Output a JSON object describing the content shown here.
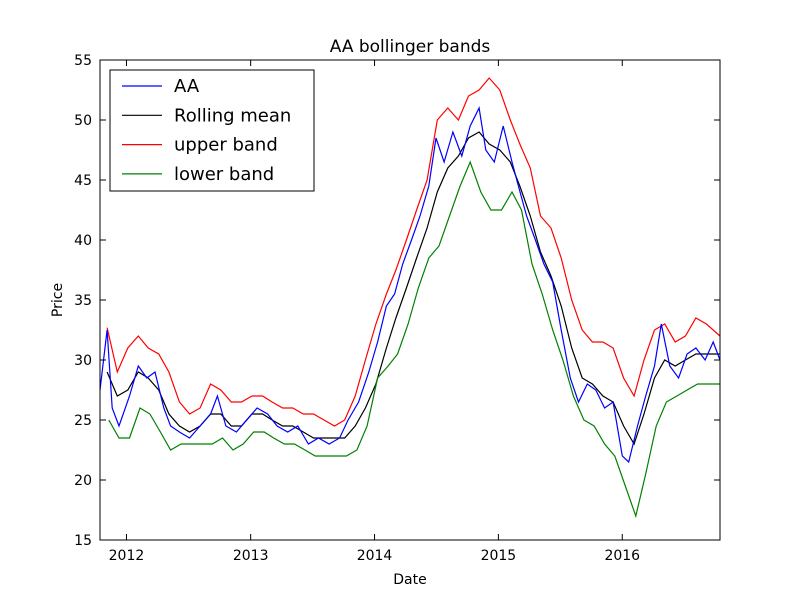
{
  "chart_data": {
    "type": "line",
    "title": "AA bollinger bands",
    "xlabel": "Date",
    "ylabel": "Price",
    "xlim": [
      "2011-10-15",
      "2016-10-15"
    ],
    "ylim": [
      15,
      55
    ],
    "x_ticks": [
      "2012",
      "2013",
      "2014",
      "2015",
      "2016"
    ],
    "y_ticks": [
      15,
      20,
      25,
      30,
      35,
      40,
      45,
      50,
      55
    ],
    "grid": false,
    "legend_position": "top-left",
    "series": [
      {
        "name": "AA",
        "color": "#0000ff",
        "points": [
          [
            "2011-10-15",
            27.5
          ],
          [
            "2011-11-05",
            32.5
          ],
          [
            "2011-11-20",
            26.0
          ],
          [
            "2011-12-10",
            24.5
          ],
          [
            "2012-01-10",
            27.0
          ],
          [
            "2012-02-05",
            29.5
          ],
          [
            "2012-03-01",
            28.5
          ],
          [
            "2012-03-25",
            29.0
          ],
          [
            "2012-04-20",
            26.0
          ],
          [
            "2012-05-10",
            24.5
          ],
          [
            "2012-06-05",
            24.0
          ],
          [
            "2012-07-05",
            23.5
          ],
          [
            "2012-08-05",
            24.5
          ],
          [
            "2012-09-05",
            25.5
          ],
          [
            "2012-09-25",
            27.0
          ],
          [
            "2012-10-20",
            24.5
          ],
          [
            "2012-11-20",
            24.0
          ],
          [
            "2012-12-20",
            25.0
          ],
          [
            "2013-01-20",
            26.0
          ],
          [
            "2013-02-20",
            25.5
          ],
          [
            "2013-03-20",
            24.5
          ],
          [
            "2013-04-20",
            24.0
          ],
          [
            "2013-05-20",
            24.5
          ],
          [
            "2013-06-20",
            23.0
          ],
          [
            "2013-07-20",
            23.5
          ],
          [
            "2013-08-20",
            23.0
          ],
          [
            "2013-09-20",
            23.5
          ],
          [
            "2013-10-15",
            25.0
          ],
          [
            "2013-11-15",
            26.5
          ],
          [
            "2013-12-15",
            29.0
          ],
          [
            "2014-01-10",
            31.5
          ],
          [
            "2014-02-05",
            34.5
          ],
          [
            "2014-03-01",
            35.5
          ],
          [
            "2014-03-25",
            38.0
          ],
          [
            "2014-04-20",
            40.0
          ],
          [
            "2014-05-15",
            42.0
          ],
          [
            "2014-06-10",
            44.5
          ],
          [
            "2014-07-01",
            48.5
          ],
          [
            "2014-07-25",
            46.5
          ],
          [
            "2014-08-20",
            49.0
          ],
          [
            "2014-09-15",
            47.0
          ],
          [
            "2014-10-10",
            49.5
          ],
          [
            "2014-11-05",
            51.0
          ],
          [
            "2014-11-25",
            47.5
          ],
          [
            "2014-12-20",
            46.5
          ],
          [
            "2015-01-15",
            49.5
          ],
          [
            "2015-02-10",
            46.5
          ],
          [
            "2015-03-01",
            44.5
          ],
          [
            "2015-03-25",
            42.0
          ],
          [
            "2015-04-20",
            40.0
          ],
          [
            "2015-05-15",
            38.0
          ],
          [
            "2015-06-10",
            36.5
          ],
          [
            "2015-07-05",
            32.5
          ],
          [
            "2015-08-01",
            28.5
          ],
          [
            "2015-08-25",
            26.5
          ],
          [
            "2015-09-20",
            28.0
          ],
          [
            "2015-10-15",
            27.5
          ],
          [
            "2015-11-10",
            26.0
          ],
          [
            "2015-12-05",
            26.5
          ],
          [
            "2016-01-01",
            22.0
          ],
          [
            "2016-01-20",
            21.5
          ],
          [
            "2016-02-15",
            24.5
          ],
          [
            "2016-03-10",
            27.0
          ],
          [
            "2016-04-05",
            29.5
          ],
          [
            "2016-04-25",
            33.0
          ],
          [
            "2016-05-20",
            29.5
          ],
          [
            "2016-06-15",
            28.5
          ],
          [
            "2016-07-10",
            30.5
          ],
          [
            "2016-08-05",
            31.0
          ],
          [
            "2016-09-01",
            30.0
          ],
          [
            "2016-09-25",
            31.5
          ],
          [
            "2016-10-15",
            30.0
          ]
        ]
      },
      {
        "name": "Rolling mean",
        "color": "#000000",
        "points": [
          [
            "2011-11-05",
            29.0
          ],
          [
            "2011-12-05",
            27.0
          ],
          [
            "2012-01-05",
            27.5
          ],
          [
            "2012-02-05",
            29.0
          ],
          [
            "2012-03-05",
            28.5
          ],
          [
            "2012-04-05",
            27.5
          ],
          [
            "2012-05-05",
            25.5
          ],
          [
            "2012-06-05",
            24.5
          ],
          [
            "2012-07-05",
            24.0
          ],
          [
            "2012-08-05",
            24.5
          ],
          [
            "2012-09-05",
            25.5
          ],
          [
            "2012-10-05",
            25.5
          ],
          [
            "2012-11-05",
            24.5
          ],
          [
            "2012-12-05",
            24.5
          ],
          [
            "2013-01-05",
            25.5
          ],
          [
            "2013-02-05",
            25.5
          ],
          [
            "2013-03-05",
            25.0
          ],
          [
            "2013-04-05",
            24.5
          ],
          [
            "2013-05-05",
            24.5
          ],
          [
            "2013-06-05",
            24.0
          ],
          [
            "2013-07-05",
            23.5
          ],
          [
            "2013-08-05",
            23.5
          ],
          [
            "2013-09-05",
            23.5
          ],
          [
            "2013-10-05",
            23.5
          ],
          [
            "2013-11-05",
            24.5
          ],
          [
            "2013-12-05",
            26.0
          ],
          [
            "2014-01-05",
            28.0
          ],
          [
            "2014-02-05",
            31.0
          ],
          [
            "2014-03-05",
            33.5
          ],
          [
            "2014-04-05",
            36.0
          ],
          [
            "2014-05-05",
            38.5
          ],
          [
            "2014-06-05",
            41.0
          ],
          [
            "2014-07-05",
            44.0
          ],
          [
            "2014-08-05",
            46.0
          ],
          [
            "2014-09-05",
            47.0
          ],
          [
            "2014-10-05",
            48.5
          ],
          [
            "2014-11-05",
            49.0
          ],
          [
            "2014-12-05",
            48.0
          ],
          [
            "2015-01-05",
            47.5
          ],
          [
            "2015-02-05",
            46.5
          ],
          [
            "2015-03-05",
            44.5
          ],
          [
            "2015-04-05",
            42.0
          ],
          [
            "2015-05-05",
            39.0
          ],
          [
            "2015-06-05",
            37.0
          ],
          [
            "2015-07-05",
            34.5
          ],
          [
            "2015-08-05",
            31.0
          ],
          [
            "2015-09-05",
            28.5
          ],
          [
            "2015-10-05",
            28.0
          ],
          [
            "2015-11-05",
            27.0
          ],
          [
            "2015-12-05",
            26.5
          ],
          [
            "2016-01-05",
            24.5
          ],
          [
            "2016-02-05",
            23.0
          ],
          [
            "2016-03-05",
            25.5
          ],
          [
            "2016-04-05",
            28.5
          ],
          [
            "2016-05-05",
            30.0
          ],
          [
            "2016-06-05",
            29.5
          ],
          [
            "2016-07-05",
            30.0
          ],
          [
            "2016-08-05",
            30.5
          ],
          [
            "2016-09-05",
            30.5
          ],
          [
            "2016-10-15",
            30.5
          ]
        ]
      },
      {
        "name": "upper band",
        "color": "#ff0000",
        "points": [
          [
            "2011-11-05",
            32.7
          ],
          [
            "2011-12-05",
            29.0
          ],
          [
            "2012-01-05",
            31.0
          ],
          [
            "2012-02-05",
            32.0
          ],
          [
            "2012-03-05",
            31.0
          ],
          [
            "2012-04-05",
            30.5
          ],
          [
            "2012-05-05",
            29.0
          ],
          [
            "2012-06-05",
            26.5
          ],
          [
            "2012-07-05",
            25.5
          ],
          [
            "2012-08-05",
            26.0
          ],
          [
            "2012-09-05",
            28.0
          ],
          [
            "2012-10-05",
            27.5
          ],
          [
            "2012-11-05",
            26.5
          ],
          [
            "2012-12-05",
            26.5
          ],
          [
            "2013-01-05",
            27.0
          ],
          [
            "2013-02-05",
            27.0
          ],
          [
            "2013-03-05",
            26.5
          ],
          [
            "2013-04-05",
            26.0
          ],
          [
            "2013-05-05",
            26.0
          ],
          [
            "2013-06-05",
            25.5
          ],
          [
            "2013-07-05",
            25.5
          ],
          [
            "2013-08-05",
            25.0
          ],
          [
            "2013-09-05",
            24.5
          ],
          [
            "2013-10-05",
            25.0
          ],
          [
            "2013-11-05",
            27.0
          ],
          [
            "2013-12-05",
            30.0
          ],
          [
            "2014-01-05",
            33.0
          ],
          [
            "2014-02-05",
            35.5
          ],
          [
            "2014-03-05",
            37.5
          ],
          [
            "2014-04-05",
            40.0
          ],
          [
            "2014-05-05",
            42.5
          ],
          [
            "2014-06-05",
            45.0
          ],
          [
            "2014-07-05",
            50.0
          ],
          [
            "2014-08-05",
            51.0
          ],
          [
            "2014-09-05",
            50.0
          ],
          [
            "2014-10-05",
            52.0
          ],
          [
            "2014-11-05",
            52.5
          ],
          [
            "2014-12-05",
            53.5
          ],
          [
            "2015-01-05",
            52.5
          ],
          [
            "2015-02-05",
            50.0
          ],
          [
            "2015-03-05",
            48.0
          ],
          [
            "2015-04-05",
            46.0
          ],
          [
            "2015-05-05",
            42.0
          ],
          [
            "2015-06-05",
            41.0
          ],
          [
            "2015-07-05",
            38.5
          ],
          [
            "2015-08-05",
            35.0
          ],
          [
            "2015-09-05",
            32.5
          ],
          [
            "2015-10-05",
            31.5
          ],
          [
            "2015-11-05",
            31.5
          ],
          [
            "2015-12-05",
            31.0
          ],
          [
            "2016-01-05",
            28.5
          ],
          [
            "2016-02-05",
            27.0
          ],
          [
            "2016-03-05",
            30.0
          ],
          [
            "2016-04-05",
            32.5
          ],
          [
            "2016-05-05",
            33.0
          ],
          [
            "2016-06-05",
            31.5
          ],
          [
            "2016-07-05",
            32.0
          ],
          [
            "2016-08-05",
            33.5
          ],
          [
            "2016-09-05",
            33.0
          ],
          [
            "2016-10-15",
            32.0
          ]
        ]
      },
      {
        "name": "lower band",
        "color": "#008000",
        "points": [
          [
            "2011-11-10",
            25.0
          ],
          [
            "2011-12-10",
            23.5
          ],
          [
            "2012-01-10",
            23.5
          ],
          [
            "2012-02-10",
            26.0
          ],
          [
            "2012-03-10",
            25.5
          ],
          [
            "2012-04-10",
            24.0
          ],
          [
            "2012-05-10",
            22.5
          ],
          [
            "2012-06-10",
            23.0
          ],
          [
            "2012-07-10",
            23.0
          ],
          [
            "2012-08-10",
            23.0
          ],
          [
            "2012-09-10",
            23.0
          ],
          [
            "2012-10-10",
            23.5
          ],
          [
            "2012-11-10",
            22.5
          ],
          [
            "2012-12-10",
            23.0
          ],
          [
            "2013-01-10",
            24.0
          ],
          [
            "2013-02-10",
            24.0
          ],
          [
            "2013-03-10",
            23.5
          ],
          [
            "2013-04-10",
            23.0
          ],
          [
            "2013-05-10",
            23.0
          ],
          [
            "2013-06-10",
            22.5
          ],
          [
            "2013-07-10",
            22.0
          ],
          [
            "2013-08-10",
            22.0
          ],
          [
            "2013-09-10",
            22.0
          ],
          [
            "2013-10-10",
            22.0
          ],
          [
            "2013-11-10",
            22.5
          ],
          [
            "2013-12-10",
            24.5
          ],
          [
            "2014-01-10",
            28.5
          ],
          [
            "2014-02-10",
            29.5
          ],
          [
            "2014-03-10",
            30.5
          ],
          [
            "2014-04-10",
            33.0
          ],
          [
            "2014-05-10",
            36.0
          ],
          [
            "2014-06-10",
            38.5
          ],
          [
            "2014-07-10",
            39.5
          ],
          [
            "2014-08-10",
            42.0
          ],
          [
            "2014-09-10",
            44.5
          ],
          [
            "2014-10-10",
            46.5
          ],
          [
            "2014-11-10",
            44.0
          ],
          [
            "2014-12-10",
            42.5
          ],
          [
            "2015-01-10",
            42.5
          ],
          [
            "2015-02-10",
            44.0
          ],
          [
            "2015-03-10",
            42.5
          ],
          [
            "2015-04-10",
            38.0
          ],
          [
            "2015-05-10",
            35.5
          ],
          [
            "2015-06-10",
            32.5
          ],
          [
            "2015-07-10",
            30.0
          ],
          [
            "2015-08-10",
            27.0
          ],
          [
            "2015-09-10",
            25.0
          ],
          [
            "2015-10-10",
            24.5
          ],
          [
            "2015-11-10",
            23.0
          ],
          [
            "2015-12-10",
            22.0
          ],
          [
            "2016-01-10",
            19.5
          ],
          [
            "2016-02-10",
            17.0
          ],
          [
            "2016-03-10",
            20.5
          ],
          [
            "2016-04-10",
            24.5
          ],
          [
            "2016-05-10",
            26.5
          ],
          [
            "2016-06-10",
            27.0
          ],
          [
            "2016-07-10",
            27.5
          ],
          [
            "2016-08-10",
            28.0
          ],
          [
            "2016-09-10",
            28.0
          ],
          [
            "2016-10-15",
            28.0
          ]
        ]
      }
    ]
  }
}
